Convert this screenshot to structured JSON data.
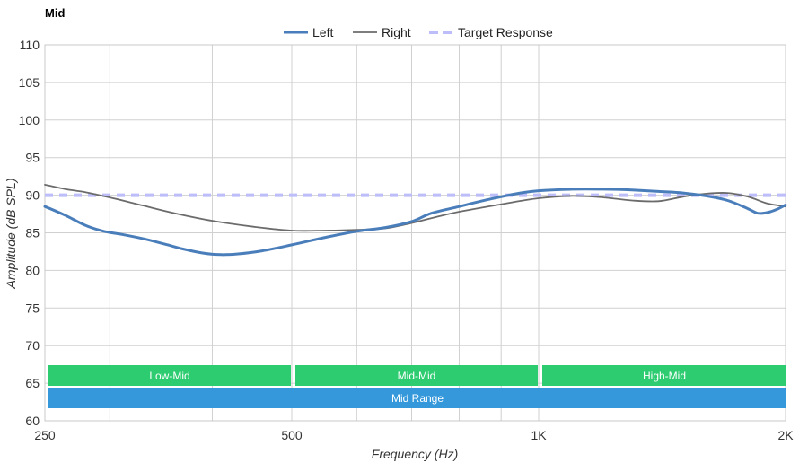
{
  "chart_data": {
    "type": "line",
    "title": "Mid",
    "xlabel": "Frequency (Hz)",
    "ylabel": "Amplitude (dB SPL)",
    "x_scale": "log",
    "xlim": [
      250,
      2000
    ],
    "ylim": [
      60,
      110
    ],
    "grid": true,
    "legend_position": "top-center",
    "x_ticks": [
      {
        "value": 250,
        "label": "250"
      },
      {
        "value": 500,
        "label": "500"
      },
      {
        "value": 1000,
        "label": "1K"
      },
      {
        "value": 2000,
        "label": "2K"
      }
    ],
    "x_minor_grid": [
      300,
      400,
      600,
      700,
      800,
      900
    ],
    "y_ticks": [
      60,
      65,
      70,
      75,
      80,
      85,
      90,
      95,
      100,
      105,
      110
    ],
    "series": [
      {
        "name": "Left",
        "color": "#4a7ebb",
        "style": "solid",
        "points": [
          [
            250,
            88.5
          ],
          [
            265,
            87.3
          ],
          [
            280,
            86.0
          ],
          [
            295,
            85.2
          ],
          [
            310,
            84.8
          ],
          [
            330,
            84.2
          ],
          [
            350,
            83.5
          ],
          [
            370,
            82.8
          ],
          [
            390,
            82.3
          ],
          [
            410,
            82.1
          ],
          [
            430,
            82.2
          ],
          [
            460,
            82.6
          ],
          [
            500,
            83.4
          ],
          [
            550,
            84.4
          ],
          [
            600,
            85.2
          ],
          [
            650,
            85.7
          ],
          [
            700,
            86.5
          ],
          [
            740,
            87.6
          ],
          [
            800,
            88.5
          ],
          [
            850,
            89.2
          ],
          [
            900,
            89.8
          ],
          [
            950,
            90.3
          ],
          [
            1000,
            90.6
          ],
          [
            1100,
            90.8
          ],
          [
            1200,
            90.8
          ],
          [
            1300,
            90.7
          ],
          [
            1400,
            90.5
          ],
          [
            1500,
            90.3
          ],
          [
            1600,
            89.9
          ],
          [
            1700,
            89.3
          ],
          [
            1800,
            88.2
          ],
          [
            1850,
            87.6
          ],
          [
            1900,
            87.7
          ],
          [
            1950,
            88.1
          ],
          [
            2000,
            88.7
          ]
        ]
      },
      {
        "name": "Right",
        "color": "#6b6b6b",
        "style": "solid",
        "points": [
          [
            250,
            91.4
          ],
          [
            265,
            90.8
          ],
          [
            280,
            90.4
          ],
          [
            300,
            89.7
          ],
          [
            330,
            88.6
          ],
          [
            360,
            87.6
          ],
          [
            400,
            86.6
          ],
          [
            450,
            85.8
          ],
          [
            500,
            85.3
          ],
          [
            550,
            85.3
          ],
          [
            600,
            85.4
          ],
          [
            650,
            85.6
          ],
          [
            700,
            86.3
          ],
          [
            750,
            87.1
          ],
          [
            800,
            87.8
          ],
          [
            900,
            88.8
          ],
          [
            1000,
            89.6
          ],
          [
            1100,
            89.9
          ],
          [
            1200,
            89.7
          ],
          [
            1300,
            89.3
          ],
          [
            1400,
            89.2
          ],
          [
            1500,
            89.8
          ],
          [
            1600,
            90.2
          ],
          [
            1700,
            90.3
          ],
          [
            1800,
            89.8
          ],
          [
            1900,
            88.9
          ],
          [
            2000,
            88.5
          ]
        ]
      },
      {
        "name": "Target Response",
        "color": "#bdbdfa",
        "style": "dashed",
        "points": [
          [
            250,
            90
          ],
          [
            2000,
            90
          ]
        ]
      }
    ],
    "bands": [
      {
        "label": "Low-Mid",
        "from": 250,
        "to": 500,
        "color": "#2ecc71",
        "row": 0
      },
      {
        "label": "Mid-Mid",
        "from": 500,
        "to": 1000,
        "color": "#2ecc71",
        "row": 0
      },
      {
        "label": "High-Mid",
        "from": 1000,
        "to": 2000,
        "color": "#2ecc71",
        "row": 0
      },
      {
        "label": "Mid Range",
        "from": 250,
        "to": 2000,
        "color": "#3498db",
        "row": 1
      }
    ]
  }
}
